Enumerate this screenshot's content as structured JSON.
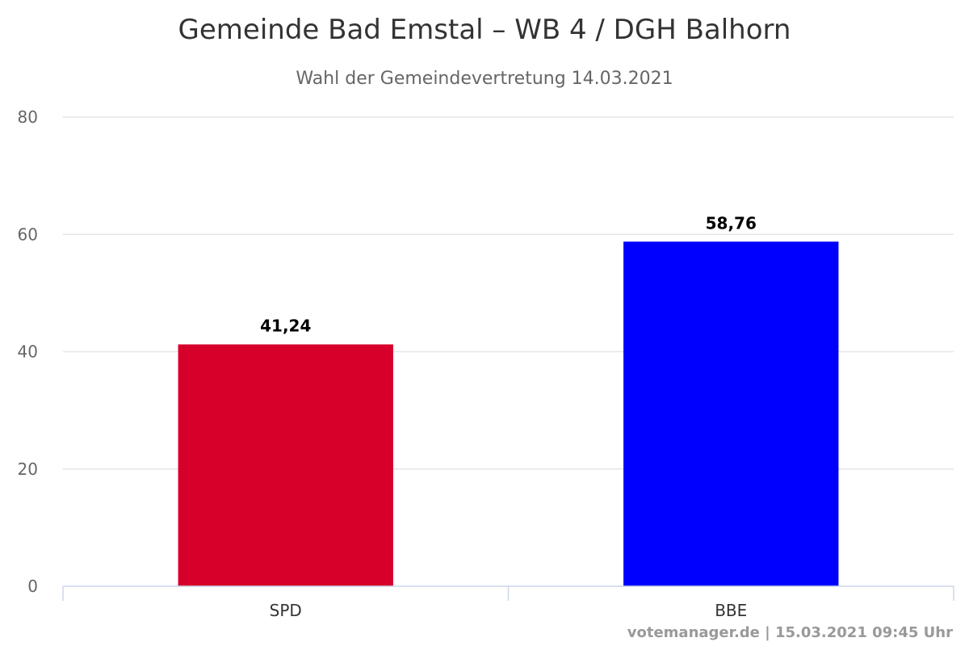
{
  "chart_data": {
    "type": "bar",
    "title": "Gemeinde Bad Emstal – WB 4 / DGH Balhorn",
    "subtitle": "Wahl der Gemeindevertretung 14.03.2021",
    "categories": [
      "SPD",
      "BBE"
    ],
    "values": [
      41.24,
      58.76
    ],
    "value_labels": [
      "41,24",
      "58,76"
    ],
    "colors": [
      "#d6002a",
      "#0000ff"
    ],
    "xlabel": "",
    "ylabel": "",
    "ylim": [
      0,
      80
    ],
    "yticks": [
      0,
      20,
      40,
      60,
      80
    ],
    "ytick_labels": [
      "0",
      "20",
      "40",
      "60",
      "80"
    ],
    "grid": true,
    "legend": "none"
  },
  "footer": {
    "credits": "votemanager.de | 15.03.2021 09:45 Uhr"
  }
}
